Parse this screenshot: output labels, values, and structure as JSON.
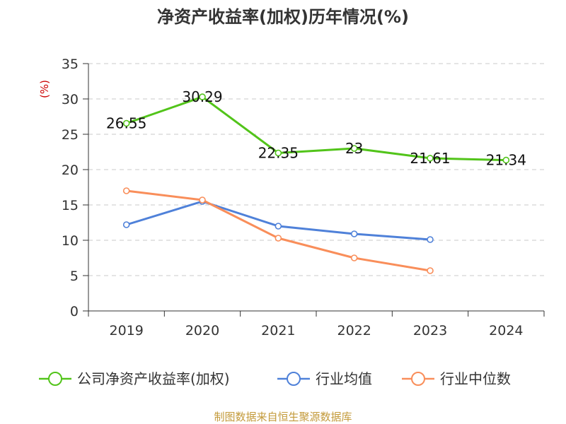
{
  "chart_data": {
    "type": "line",
    "title": "净资产收益率(加权)历年情况(%)",
    "ylabel": "(%)",
    "xlabel": "",
    "ylim": [
      0,
      35
    ],
    "yticks": [
      0,
      5,
      10,
      15,
      20,
      25,
      30,
      35
    ],
    "categories": [
      "2019",
      "2020",
      "2021",
      "2022",
      "2023",
      "2024"
    ],
    "grid": true,
    "legend_position": "bottom",
    "series": [
      {
        "name": "公司净资产收益率(加权)",
        "color": "#52c41a",
        "values": [
          26.55,
          30.29,
          22.35,
          23,
          21.61,
          21.34
        ],
        "labels": [
          "26.55",
          "30.29",
          "22.35",
          "23",
          "21.61",
          "21.34"
        ],
        "show_labels": true
      },
      {
        "name": "行业均值",
        "color": "#4f81d9",
        "values": [
          12.2,
          15.5,
          12.0,
          10.9,
          10.1,
          null
        ],
        "show_labels": false
      },
      {
        "name": "行业中位数",
        "color": "#f98e5a",
        "values": [
          17.0,
          15.7,
          10.3,
          7.5,
          5.7,
          null
        ],
        "show_labels": false
      }
    ],
    "source": "制图数据来自恒生聚源数据库",
    "source_color": "#c39a3a"
  }
}
